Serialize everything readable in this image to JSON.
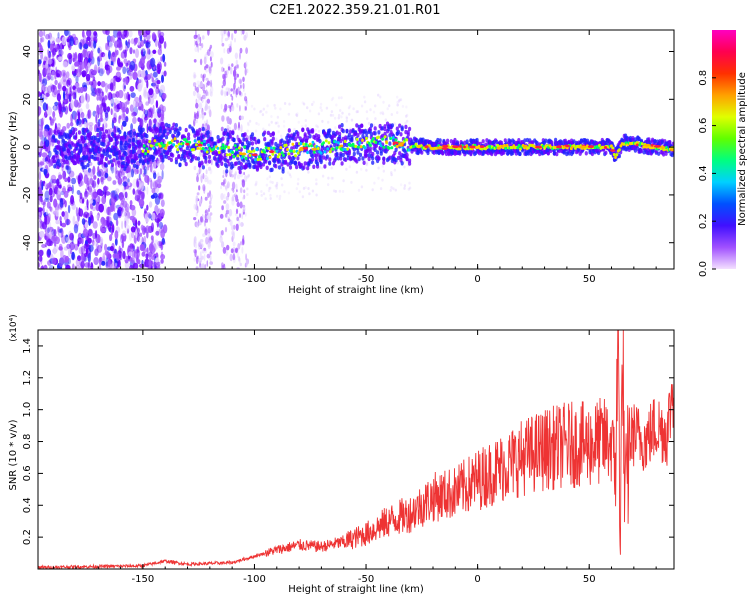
{
  "page_title": "C2E1.2022.359.21.01.R01",
  "colors": {
    "snr_line": "#ee3333",
    "colormap": [
      "#ffffff",
      "#e0ccff",
      "#a050ff",
      "#6a00ff",
      "#2020ff",
      "#00c8ff",
      "#00ff60",
      "#c8ff00",
      "#ffd000",
      "#ff5000",
      "#ff0060",
      "#ff00c8"
    ]
  },
  "chart_data": [
    {
      "type": "heatmap",
      "title": "C2E1.2022.359.21.01.R01",
      "xlabel": "Height of straight line (km)",
      "ylabel": "Frequency (Hz)",
      "xlim": [
        -197,
        88
      ],
      "ylim": [
        -51,
        49
      ],
      "xticks": [
        -150,
        -100,
        -50,
        0,
        50
      ],
      "yticks": [
        -40,
        -20,
        0,
        20,
        40
      ],
      "description_series": [
        {
          "name": "ridge",
          "x": [
            -197,
            -150,
            -140,
            -130,
            -100,
            -60,
            -40,
            -35,
            -20,
            0,
            20,
            40,
            60,
            62,
            65,
            88
          ],
          "y": [
            0,
            -1,
            2,
            1,
            -3,
            1,
            2,
            1,
            0,
            0,
            0,
            0,
            0,
            -4,
            2,
            -1
          ]
        }
      ],
      "colorbar": {
        "label": "Normalized spectral amplitude",
        "range": [
          0,
          1
        ],
        "ticks": [
          "0.0",
          "0.2",
          "0.4",
          "0.6",
          "0.8"
        ]
      }
    },
    {
      "type": "line",
      "xlabel": "Height of straight line (km)",
      "ylabel": "SNR (10 * v/v)",
      "y_multiplier": "(x10⁴)",
      "xlim": [
        -197,
        88
      ],
      "ylim": [
        0,
        1.5
      ],
      "xticks": [
        -150,
        -100,
        -50,
        0,
        50
      ],
      "yticks": [
        "0.2",
        "0.4",
        "0.6",
        "0.8",
        "1.0",
        "1.2",
        "1.4"
      ],
      "series": [
        {
          "x": [
            -197,
            -150,
            -140,
            -130,
            -110,
            -100,
            -90,
            -80,
            -70,
            -60,
            -50,
            -40,
            -30,
            -20,
            -10,
            0,
            10,
            20,
            30,
            40,
            50,
            55,
            60,
            62,
            63,
            64,
            65,
            66,
            68,
            70,
            75,
            80,
            85,
            88
          ],
          "y": [
            0.01,
            0.02,
            0.05,
            0.03,
            0.04,
            0.08,
            0.12,
            0.15,
            0.14,
            0.17,
            0.22,
            0.3,
            0.35,
            0.45,
            0.48,
            0.56,
            0.63,
            0.7,
            0.75,
            0.78,
            0.78,
            0.8,
            0.8,
            0.7,
            1.5,
            0.2,
            1.4,
            0.3,
            0.8,
            0.85,
            0.8,
            0.9,
            0.85,
            1.2
          ]
        }
      ]
    }
  ]
}
